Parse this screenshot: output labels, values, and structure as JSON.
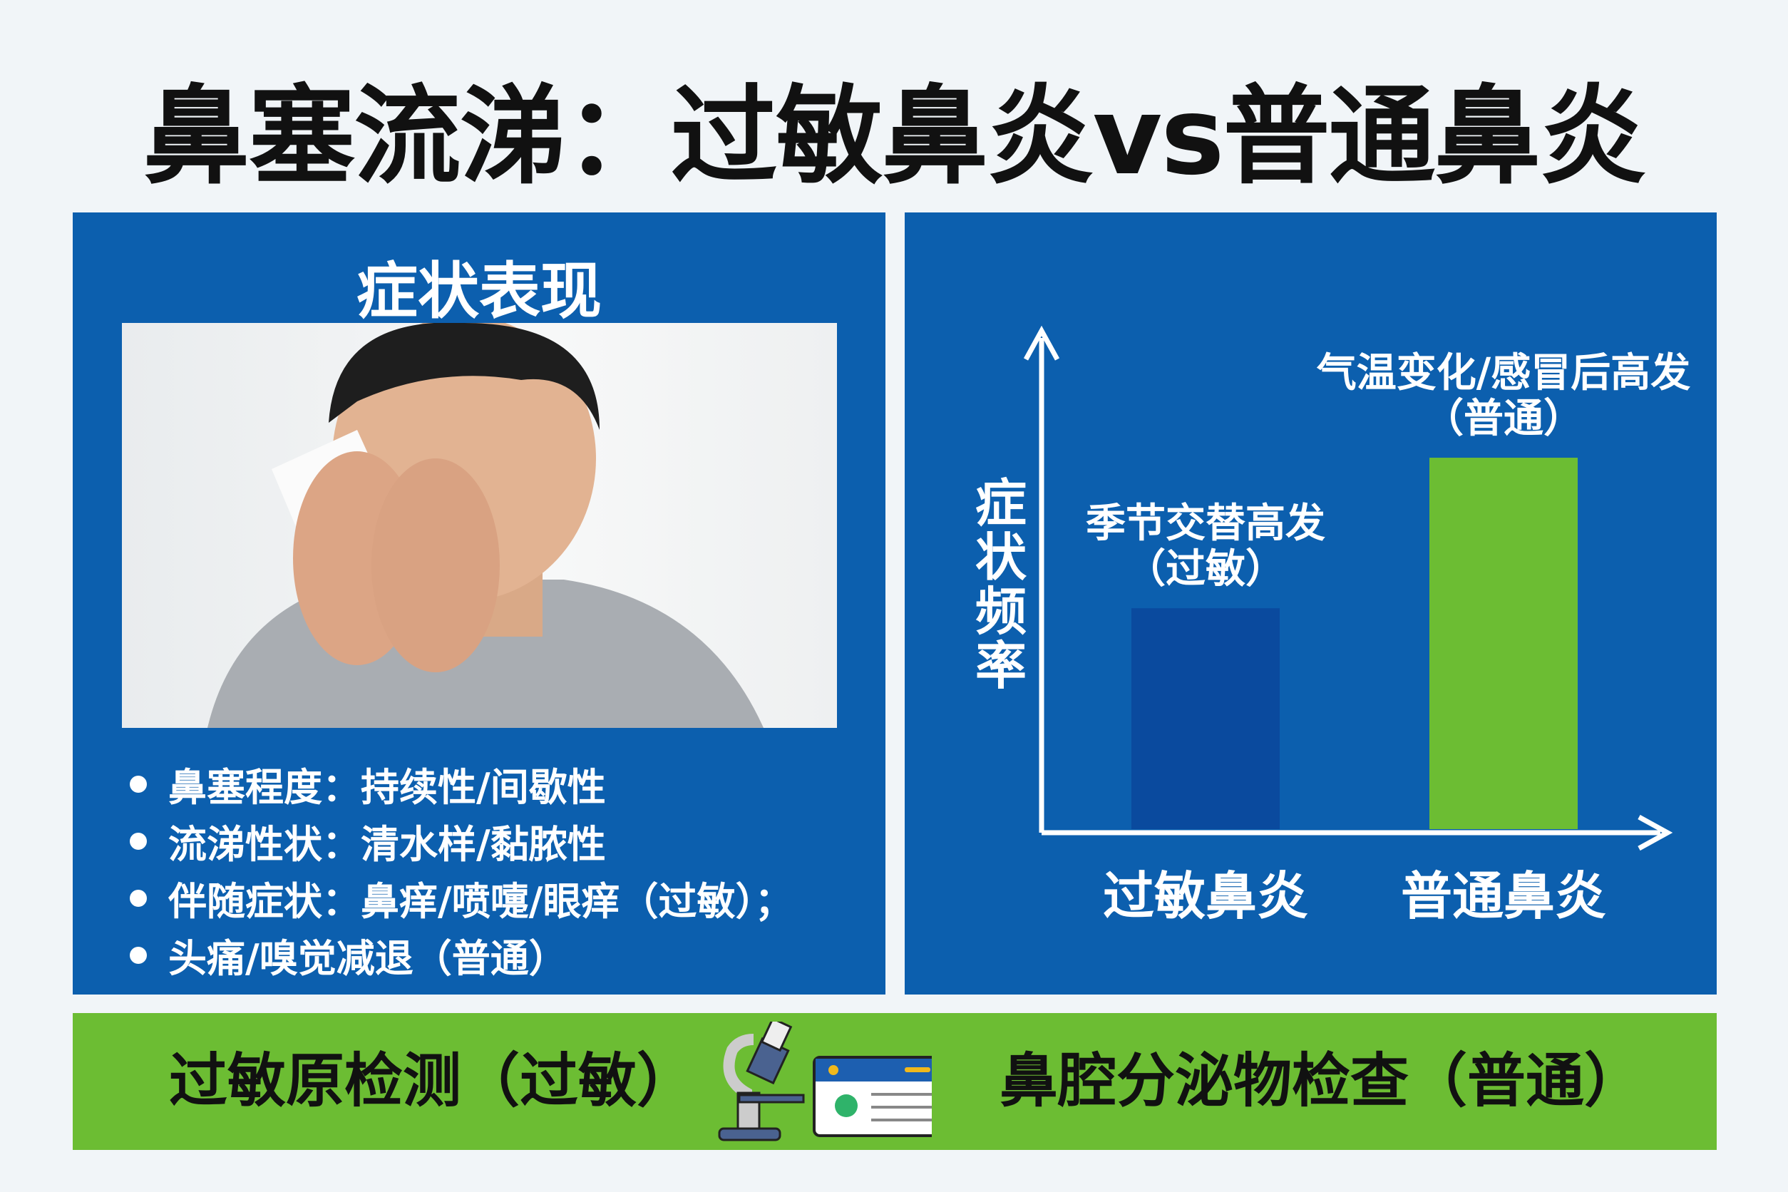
{
  "title": "鼻塞流涕：过敏鼻炎vs普通鼻炎",
  "left_panel": {
    "heading": "症状表现",
    "photo": "man-blowing-nose-with-tissue",
    "bullets": [
      "鼻塞程度：持续性/间歇性",
      "流涕性状：清水样/黏脓性",
      "伴随症状：鼻痒/喷嚏/眼痒（过敏）；",
      "头痛/嗅觉减退（普通）"
    ]
  },
  "chart_data": {
    "type": "bar",
    "ylabel": "症状频率",
    "categories": [
      "过敏鼻炎",
      "普通鼻炎"
    ],
    "values": [
      44,
      74
    ],
    "ylim": [
      0,
      100
    ],
    "annotations": [
      {
        "line1": "季节交替高发",
        "line2": "（过敏）"
      },
      {
        "line1": "气温变化/感冒后高发",
        "line2": "（普通）"
      }
    ],
    "colors": [
      "#0a4a9e",
      "#6cbd33"
    ],
    "grid": false
  },
  "bottom_bar": {
    "left_text": "过敏原检测（过敏）",
    "right_text": "鼻腔分泌物检查（普通）",
    "icons": [
      "microscope-icon",
      "test-report-icon"
    ]
  },
  "colors": {
    "panel": "#0c5fae",
    "accent_green": "#6cbd33",
    "background": "#f1f5f8"
  }
}
